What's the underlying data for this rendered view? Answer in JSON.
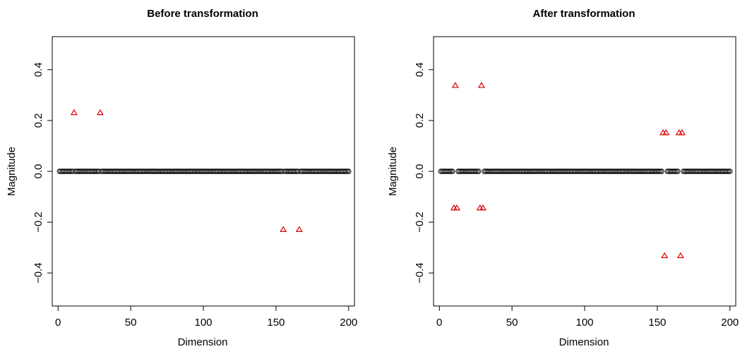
{
  "chart_data": [
    {
      "type": "scatter",
      "title": "Before transformation",
      "xlabel": "Dimension",
      "ylabel": "Magnitude",
      "xlim": [
        -4,
        204
      ],
      "ylim": [
        -0.53,
        0.53
      ],
      "xticks": [
        0,
        50,
        100,
        150,
        200
      ],
      "xtick_labels": [
        "0",
        "50",
        "100",
        "150",
        "200"
      ],
      "yticks": [
        -0.4,
        -0.2,
        0.0,
        0.2,
        0.4
      ],
      "ytick_labels": [
        "−0.4",
        "−0.2",
        "0.0",
        "0.2",
        "0.4"
      ],
      "grid": false,
      "legend": "none",
      "series": [
        {
          "marker": "circle",
          "color": "#000000",
          "zero_dims_excluding": [
            11,
            29,
            155,
            166
          ],
          "x_range": [
            1,
            200
          ],
          "y_value": 0.0
        },
        {
          "marker": "triangle",
          "color": "#dd0000",
          "points": [
            {
              "x": 11,
              "y": 0.23
            },
            {
              "x": 29,
              "y": 0.23
            },
            {
              "x": 155,
              "y": -0.23
            },
            {
              "x": 166,
              "y": -0.23
            }
          ]
        }
      ]
    },
    {
      "type": "scatter",
      "title": "After transformation",
      "xlabel": "Dimension",
      "ylabel": "Magnitude",
      "xlim": [
        -4,
        204
      ],
      "ylim": [
        -0.53,
        0.53
      ],
      "xticks": [
        0,
        50,
        100,
        150,
        200
      ],
      "xtick_labels": [
        "0",
        "50",
        "100",
        "150",
        "200"
      ],
      "yticks": [
        -0.4,
        -0.2,
        0.0,
        0.2,
        0.4
      ],
      "ytick_labels": [
        "−0.4",
        "−0.2",
        "0.0",
        "0.2",
        "0.4"
      ],
      "grid": false,
      "legend": "none",
      "series": [
        {
          "marker": "circle",
          "color": "#000000",
          "zero_dims_excluding": [
            10,
            11,
            12,
            28,
            29,
            30,
            154,
            155,
            156,
            165,
            166,
            167
          ],
          "x_range": [
            1,
            200
          ],
          "y_value": 0.0
        },
        {
          "marker": "triangle",
          "color": "#dd0000",
          "points": [
            {
              "x": 11,
              "y": 0.337
            },
            {
              "x": 29,
              "y": 0.337
            },
            {
              "x": 10,
              "y": -0.145
            },
            {
              "x": 12,
              "y": -0.145
            },
            {
              "x": 28,
              "y": -0.145
            },
            {
              "x": 30,
              "y": -0.145
            },
            {
              "x": 154,
              "y": 0.151
            },
            {
              "x": 156,
              "y": 0.151
            },
            {
              "x": 165,
              "y": 0.151
            },
            {
              "x": 167,
              "y": 0.151
            },
            {
              "x": 155,
              "y": -0.333
            },
            {
              "x": 166,
              "y": -0.333
            }
          ]
        }
      ]
    }
  ]
}
